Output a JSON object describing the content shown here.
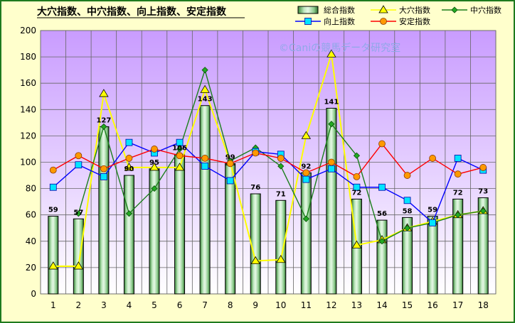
{
  "chart_data": {
    "type": "bar",
    "title": "大穴指数、中穴指数、向上指数、安定指数",
    "watermark": "©Caniの競馬データ研究室",
    "categories": [
      "1",
      "2",
      "3",
      "4",
      "5",
      "6",
      "7",
      "8",
      "9",
      "10",
      "11",
      "12",
      "13",
      "14",
      "15",
      "16",
      "17",
      "18"
    ],
    "ylim": [
      0,
      200
    ],
    "yticks": [
      0,
      20,
      40,
      60,
      80,
      100,
      120,
      140,
      160,
      180,
      200
    ],
    "grid": true,
    "legend_position": "top-right",
    "series": [
      {
        "name": "総合指数",
        "kind": "bar",
        "color": "#2E7D32",
        "values": [
          59,
          57,
          127,
          90,
          95,
          106,
          143,
          99,
          76,
          71,
          92,
          141,
          72,
          56,
          58,
          59,
          72,
          73
        ],
        "labels": [
          "59",
          "57",
          "127",
          "90",
          "95",
          "106",
          "143",
          "99",
          "76",
          "71",
          "92",
          "141",
          "72",
          "56",
          "58",
          "59",
          "72",
          "73"
        ]
      },
      {
        "name": "大穴指数",
        "kind": "line",
        "color": "#FFFF00",
        "marker": "triangle",
        "values": [
          21,
          21,
          152,
          96,
          96,
          96,
          155,
          100,
          25,
          26,
          120,
          182,
          37,
          41,
          50,
          55,
          60,
          63
        ]
      },
      {
        "name": "中穴指数",
        "kind": "line",
        "color": "#1B7F1B",
        "marker": "diamond",
        "values": [
          null,
          61,
          127,
          61,
          80,
          110,
          170,
          101,
          111,
          97,
          57,
          129,
          105,
          40,
          50,
          54,
          60,
          63
        ]
      },
      {
        "name": "向上指数",
        "kind": "line",
        "color": "#0000FF",
        "marker": "square",
        "values": [
          81,
          98,
          89,
          115,
          107,
          115,
          97,
          86,
          108,
          106,
          87,
          95,
          81,
          81,
          71,
          54,
          103,
          94
        ]
      },
      {
        "name": "安定指数",
        "kind": "line",
        "color": "#FF0000",
        "marker": "circle",
        "values": [
          94,
          105,
          95,
          103,
          110,
          105,
          103,
          99,
          107,
          103,
          92,
          100,
          89,
          114,
          90,
          103,
          91,
          96
        ]
      }
    ]
  }
}
